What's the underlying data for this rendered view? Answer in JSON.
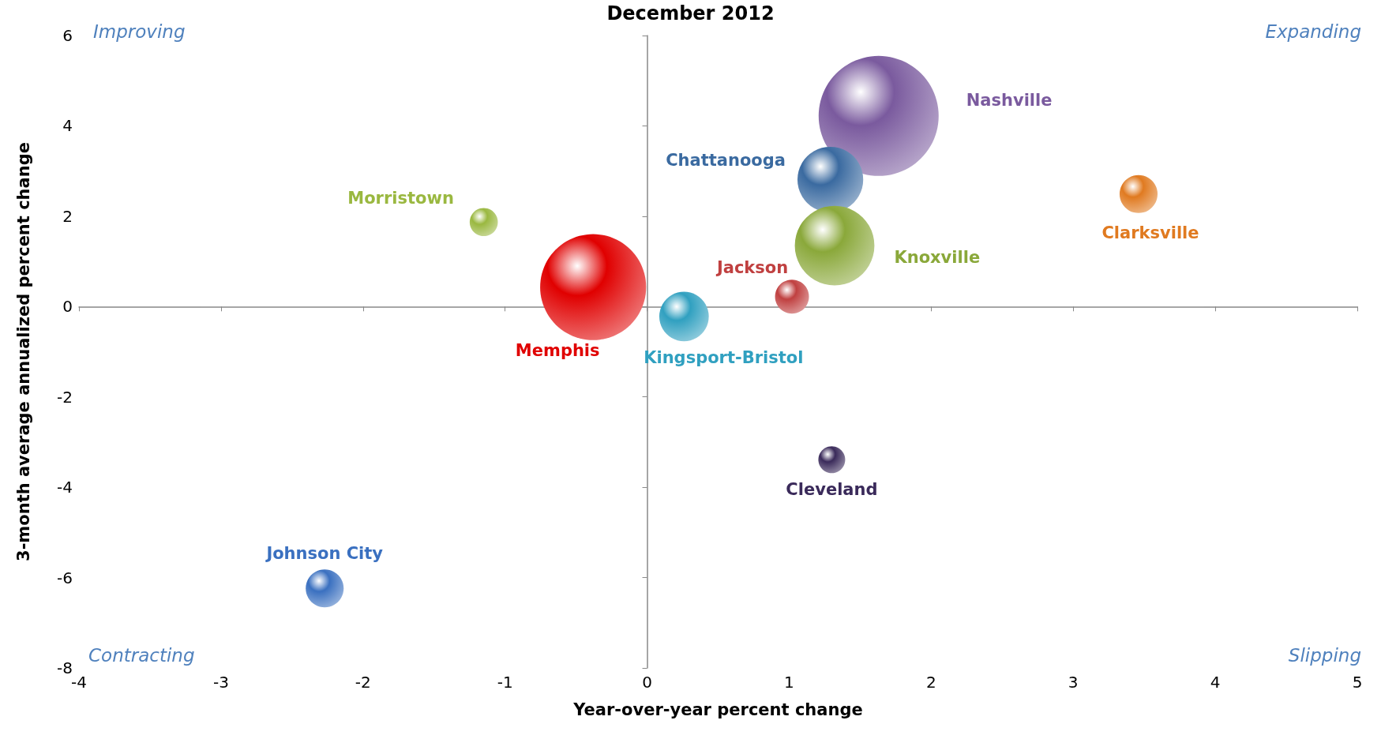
{
  "chart_data": {
    "type": "bubble",
    "title": "December 2012",
    "xlabel": "Year-over-year percent change",
    "ylabel": "3-month average annualized percent change",
    "xlim": [
      -4,
      5
    ],
    "xticks": [
      -4,
      -3,
      -2,
      -1,
      0,
      1,
      2,
      3,
      4,
      5
    ],
    "ylim": [
      -8,
      6
    ],
    "yticks": [
      -8,
      -6,
      -4,
      -2,
      0,
      2,
      4,
      6
    ],
    "legend": false,
    "annotations": [
      "Improving",
      "Expanding",
      "Contracting",
      "Slipping"
    ],
    "series": [
      {
        "name": "Nashville",
        "color": "#7a5a9e",
        "x": [
          1.63
        ],
        "values": [
          4.22
        ],
        "sizes": [
          1
        ]
      },
      {
        "name": "Chattanooga",
        "color": "#3a6aa0",
        "x": [
          1.29
        ],
        "values": [
          2.81
        ],
        "sizes": [
          0.3
        ]
      },
      {
        "name": "Knoxville",
        "color": "#8aa83a",
        "x": [
          1.32
        ],
        "values": [
          1.35
        ],
        "sizes": [
          0.44
        ]
      },
      {
        "name": "Clarksville",
        "color": "#e07a20",
        "x": [
          3.46
        ],
        "values": [
          2.49
        ],
        "sizes": [
          0.1
        ]
      },
      {
        "name": "Jackson",
        "color": "#c04040",
        "x": [
          1.02
        ],
        "values": [
          0.22
        ],
        "sizes": [
          0.08
        ]
      },
      {
        "name": "Memphis",
        "color": "#e00000",
        "x": [
          -0.38
        ],
        "values": [
          0.43
        ],
        "sizes": [
          0.78
        ]
      },
      {
        "name": "Kingsport-Bristol",
        "color": "#30a0c0",
        "x": [
          0.26
        ],
        "values": [
          -0.22
        ],
        "sizes": [
          0.17
        ]
      },
      {
        "name": "Morristown",
        "color": "#9ab840",
        "x": [
          -1.15
        ],
        "values": [
          1.87
        ],
        "sizes": [
          0.055
        ]
      },
      {
        "name": "Cleveland",
        "color": "#3a2a5a",
        "x": [
          1.3
        ],
        "values": [
          -3.39
        ],
        "sizes": [
          0.05
        ]
      },
      {
        "name": "Johnson City",
        "color": "#3a70c0",
        "x": [
          -2.27
        ],
        "values": [
          -6.24
        ],
        "sizes": [
          0.1
        ]
      }
    ]
  }
}
